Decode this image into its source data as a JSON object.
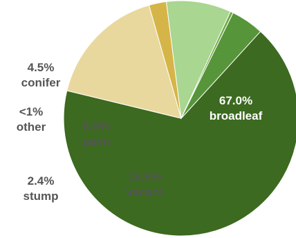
{
  "chart_data": {
    "type": "pie",
    "title": "",
    "slices": [
      {
        "name": "broadleaf",
        "value": 67.0,
        "label_pct": "67.0%",
        "label_name": "broadleaf",
        "color": "#3c6a20",
        "label_color": "#ffffff"
      },
      {
        "name": "vacant",
        "value": 16.8,
        "label_pct": "16.8%",
        "label_name": "vacant",
        "color": "#e9d89d",
        "label_color": "#555555"
      },
      {
        "name": "stump",
        "value": 2.4,
        "label_pct": "2.4%",
        "label_name": "stump",
        "color": "#d6b548",
        "label_color": "#555555"
      },
      {
        "name": "palm",
        "value": 8.9,
        "label_pct": "8.9%",
        "label_name": "palm",
        "color": "#a9d690",
        "label_color": "#555555"
      },
      {
        "name": "other",
        "value": 0.4,
        "label_pct": "<1%",
        "label_name": "other",
        "color": "#6cab44",
        "label_color": "#555555"
      },
      {
        "name": "conifer",
        "value": 4.5,
        "label_pct": "4.5%",
        "label_name": "conifer",
        "color": "#57953a",
        "label_color": "#555555"
      }
    ]
  }
}
